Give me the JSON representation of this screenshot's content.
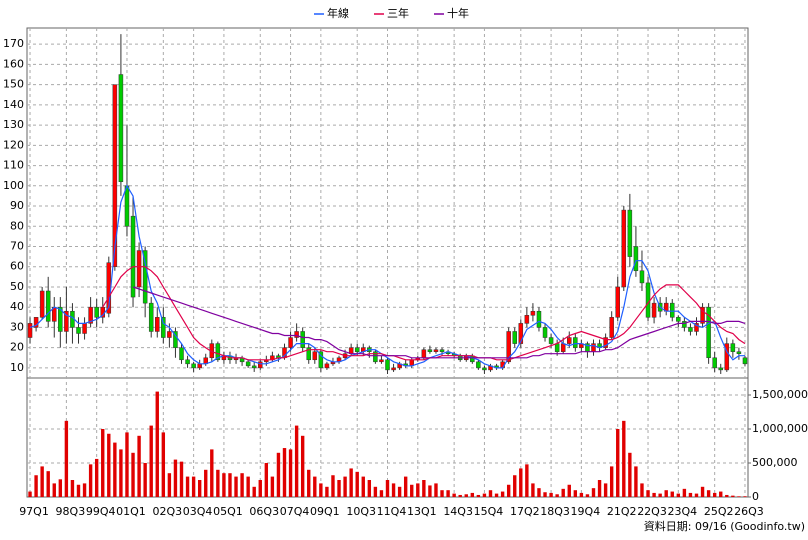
{
  "chart_data": [
    {
      "type": "candlestick",
      "categories": [
        "97Q1",
        null,
        null,
        null,
        null,
        null,
        "98Q3",
        null,
        null,
        null,
        null,
        "99Q4",
        null,
        null,
        null,
        null,
        "01Q1",
        null,
        null,
        null,
        null,
        null,
        "02Q3",
        null,
        null,
        null,
        null,
        "03Q4",
        null,
        null,
        null,
        null,
        "05Q1",
        null,
        null,
        null,
        null,
        null,
        "06Q3",
        null,
        null,
        null,
        null,
        "07Q4",
        null,
        null,
        null,
        null,
        "09Q1",
        null,
        null,
        null,
        null,
        null,
        "10Q3",
        null,
        null,
        null,
        null,
        "11Q4",
        null,
        null,
        null,
        null,
        "13Q1",
        null,
        null,
        null,
        null,
        null,
        "14Q3",
        null,
        null,
        null,
        null,
        "15Q4",
        null,
        null,
        null,
        null,
        null,
        "17Q2",
        null,
        null,
        null,
        null,
        "18Q3",
        null,
        null,
        null,
        null,
        "19Q4",
        null,
        null,
        null,
        null,
        null,
        "21Q2",
        null,
        null,
        null,
        null,
        "22Q3",
        null,
        null,
        null,
        null,
        "23Q4",
        null,
        null,
        null,
        null,
        null,
        "25Q2",
        null,
        null,
        null,
        null,
        "26Q3"
      ],
      "open": [
        25,
        30,
        35,
        48,
        33,
        40,
        28,
        38,
        30,
        27,
        32,
        40,
        35,
        37,
        60,
        155,
        100,
        85,
        50,
        68,
        42,
        28,
        35,
        25,
        28,
        20,
        14,
        12,
        10,
        12,
        15,
        22,
        14,
        16,
        14,
        15,
        13,
        11,
        10,
        13,
        14,
        16,
        15,
        20,
        25,
        28,
        20,
        14,
        18,
        10,
        12,
        13,
        15,
        17,
        20,
        18,
        20,
        18,
        13,
        14,
        9,
        10,
        12,
        11,
        14,
        15,
        19,
        18,
        19,
        18,
        17,
        16,
        14,
        16,
        13,
        10,
        9,
        11,
        10,
        13,
        28,
        22,
        32,
        36,
        38,
        30,
        25,
        22,
        18,
        22,
        25,
        20,
        22,
        18,
        22,
        20,
        25,
        35,
        50,
        88,
        70,
        58,
        52,
        35,
        42,
        38,
        42,
        35,
        33,
        30,
        28,
        32,
        40,
        15,
        10,
        9,
        22,
        18,
        15
      ],
      "high": [
        35,
        35,
        50,
        55,
        45,
        45,
        50,
        42,
        35,
        35,
        45,
        44,
        45,
        65,
        150,
        175,
        130,
        95,
        72,
        70,
        45,
        40,
        40,
        32,
        30,
        22,
        16,
        13,
        14,
        17,
        24,
        23,
        18,
        18,
        17,
        16,
        14,
        13,
        14,
        16,
        18,
        17,
        22,
        28,
        32,
        30,
        22,
        20,
        19,
        13,
        15,
        16,
        19,
        22,
        22,
        22,
        21,
        19,
        16,
        15,
        12,
        13,
        14,
        15,
        16,
        20,
        21,
        20,
        20,
        19,
        18,
        17,
        17,
        17,
        14,
        11,
        12,
        12,
        14,
        30,
        30,
        34,
        40,
        42,
        40,
        32,
        27,
        24,
        25,
        28,
        27,
        24,
        23,
        24,
        24,
        27,
        38,
        55,
        90,
        96,
        80,
        68,
        55,
        45,
        45,
        45,
        44,
        36,
        35,
        32,
        35,
        42,
        42,
        18,
        12,
        25,
        24,
        20,
        16
      ],
      "low": [
        22,
        28,
        34,
        30,
        25,
        20,
        22,
        22,
        22,
        24,
        30,
        30,
        32,
        35,
        58,
        95,
        75,
        40,
        45,
        35,
        25,
        25,
        22,
        20,
        15,
        12,
        10,
        8,
        9,
        11,
        13,
        13,
        12,
        12,
        12,
        11,
        10,
        8,
        9,
        11,
        13,
        13,
        14,
        18,
        23,
        18,
        12,
        12,
        8,
        9,
        11,
        12,
        14,
        16,
        16,
        16,
        15,
        12,
        12,
        7,
        8,
        9,
        10,
        10,
        13,
        14,
        17,
        17,
        16,
        16,
        15,
        13,
        13,
        12,
        9,
        7,
        8,
        9,
        9,
        12,
        20,
        20,
        30,
        33,
        28,
        23,
        20,
        16,
        17,
        20,
        18,
        18,
        15,
        16,
        18,
        19,
        24,
        33,
        48,
        60,
        55,
        48,
        33,
        32,
        35,
        36,
        33,
        30,
        28,
        26,
        26,
        30,
        12,
        8,
        7,
        8,
        15,
        14,
        11
      ],
      "close": [
        32,
        35,
        48,
        33,
        40,
        28,
        38,
        30,
        27,
        32,
        40,
        35,
        40,
        62,
        150,
        102,
        80,
        45,
        68,
        42,
        28,
        35,
        25,
        28,
        20,
        14,
        12,
        10,
        12,
        15,
        22,
        14,
        16,
        14,
        15,
        13,
        11,
        10,
        13,
        14,
        16,
        15,
        20,
        25,
        28,
        20,
        14,
        18,
        10,
        12,
        13,
        15,
        17,
        20,
        18,
        20,
        18,
        13,
        14,
        9,
        10,
        12,
        11,
        14,
        15,
        19,
        18,
        19,
        18,
        17,
        16,
        14,
        16,
        13,
        10,
        9,
        11,
        10,
        13,
        28,
        22,
        32,
        36,
        38,
        30,
        25,
        22,
        18,
        22,
        25,
        20,
        22,
        18,
        22,
        20,
        25,
        35,
        50,
        88,
        65,
        58,
        52,
        35,
        42,
        38,
        42,
        35,
        33,
        30,
        28,
        32,
        40,
        15,
        10,
        9,
        22,
        18,
        17,
        12
      ],
      "up_color": "#ff0000",
      "down_color": "#00cc00",
      "series": [
        {
          "name": "年線",
          "color": "#1f5fff",
          "values": [
            30,
            31,
            34,
            37,
            40,
            39,
            36,
            35,
            32,
            32,
            33,
            34,
            36,
            40,
            70,
            92,
            100,
            95,
            75,
            62,
            48,
            42,
            32,
            30,
            26,
            22,
            17,
            14,
            12,
            12,
            13,
            15,
            16,
            16,
            15,
            15,
            14,
            13,
            12,
            12,
            13,
            14,
            16,
            19,
            22,
            22,
            22,
            20,
            16,
            14,
            13,
            13,
            14,
            16,
            17,
            18,
            19,
            19,
            17,
            15,
            13,
            12,
            11,
            11,
            12,
            13,
            15,
            16,
            17,
            18,
            17,
            16,
            16,
            15,
            14,
            12,
            11,
            10,
            10,
            15,
            18,
            23,
            29,
            31,
            33,
            32,
            29,
            25,
            22,
            21,
            22,
            22,
            21,
            21,
            20,
            21,
            23,
            28,
            40,
            55,
            63,
            63,
            58,
            47,
            40,
            38,
            38,
            38,
            35,
            33,
            31,
            30,
            32,
            33,
            25,
            18,
            14,
            16,
            16
          ]
        },
        {
          "name": "三年",
          "color": "#e0004a",
          "values": [
            null,
            null,
            null,
            null,
            null,
            null,
            null,
            null,
            null,
            null,
            null,
            null,
            40,
            45,
            50,
            55,
            58,
            60,
            60,
            60,
            58,
            55,
            50,
            45,
            40,
            35,
            30,
            25,
            22,
            20,
            18,
            17,
            16,
            15,
            15,
            15,
            14,
            14,
            14,
            14,
            14,
            15,
            15,
            16,
            17,
            18,
            19,
            19,
            19,
            18,
            18,
            17,
            16,
            16,
            16,
            16,
            17,
            17,
            17,
            16,
            16,
            15,
            14,
            14,
            14,
            14,
            15,
            15,
            16,
            16,
            16,
            16,
            16,
            16,
            15,
            15,
            15,
            14,
            14,
            14,
            15,
            16,
            17,
            18,
            19,
            20,
            21,
            22,
            24,
            26,
            27,
            28,
            27,
            26,
            25,
            24,
            24,
            25,
            27,
            30,
            34,
            38,
            42,
            46,
            49,
            51,
            51,
            51,
            48,
            45,
            42,
            38,
            36,
            33,
            30,
            28,
            27,
            24,
            22
          ]
        },
        {
          "name": "十年",
          "color": "#8000a0",
          "values": [
            null,
            null,
            null,
            null,
            null,
            null,
            null,
            null,
            null,
            null,
            null,
            null,
            null,
            null,
            null,
            null,
            null,
            50,
            49,
            48,
            47,
            46,
            45,
            44,
            43,
            42,
            41,
            40,
            39,
            38,
            37,
            36,
            35,
            34,
            33,
            32,
            31,
            30,
            29,
            28,
            27,
            27,
            26,
            26,
            26,
            25,
            25,
            24,
            24,
            23,
            21,
            19,
            18,
            17,
            17,
            17,
            16,
            16,
            16,
            16,
            16,
            16,
            16,
            15,
            15,
            15,
            15,
            15,
            15,
            15,
            15,
            15,
            15,
            15,
            15,
            15,
            15,
            15,
            15,
            15,
            15,
            15,
            15,
            16,
            16,
            17,
            17,
            17,
            17,
            17,
            17,
            18,
            18,
            18,
            18,
            19,
            19,
            20,
            22,
            24,
            25,
            26,
            27,
            28,
            29,
            30,
            31,
            32,
            32,
            33,
            33,
            33,
            33,
            32,
            32,
            33,
            33,
            33,
            32
          ]
        }
      ],
      "ylim": [
        5,
        178
      ],
      "yticks": [
        10,
        20,
        30,
        40,
        50,
        60,
        70,
        80,
        90,
        100,
        110,
        120,
        130,
        140,
        150,
        160,
        170
      ],
      "grid": true,
      "legend": "top",
      "source": "資料日期: 09/16 (Goodinfo.tw)"
    },
    {
      "type": "bar",
      "color": "#e00000",
      "values": [
        80000,
        320000,
        450000,
        380000,
        200000,
        260000,
        1120000,
        250000,
        180000,
        200000,
        480000,
        560000,
        1000000,
        930000,
        800000,
        700000,
        950000,
        650000,
        900000,
        500000,
        1050000,
        1550000,
        950000,
        350000,
        550000,
        520000,
        300000,
        300000,
        250000,
        400000,
        700000,
        400000,
        350000,
        350000,
        300000,
        350000,
        300000,
        150000,
        250000,
        500000,
        300000,
        650000,
        720000,
        700000,
        1050000,
        900000,
        400000,
        300000,
        200000,
        150000,
        320000,
        250000,
        300000,
        420000,
        370000,
        300000,
        250000,
        150000,
        100000,
        250000,
        200000,
        150000,
        300000,
        180000,
        200000,
        250000,
        170000,
        200000,
        100000,
        100000,
        50000,
        30000,
        40000,
        60000,
        30000,
        50000,
        100000,
        50000,
        80000,
        180000,
        320000,
        420000,
        480000,
        200000,
        130000,
        70000,
        60000,
        40000,
        120000,
        180000,
        100000,
        60000,
        40000,
        130000,
        250000,
        200000,
        450000,
        1000000,
        1120000,
        650000,
        450000,
        200000,
        100000,
        60000,
        50000,
        100000,
        80000,
        50000,
        120000,
        60000,
        50000,
        150000,
        100000,
        60000,
        80000,
        30000,
        20000,
        10000,
        10000
      ],
      "ylim": [
        0,
        1750000
      ],
      "yticks": [
        0,
        {
          "value": 500000,
          "label": "500,000"
        },
        {
          "value": 1000000,
          "label": "1,000,000"
        },
        {
          "value": 1500000,
          "label": "1,500,000"
        }
      ],
      "grid": true
    }
  ]
}
